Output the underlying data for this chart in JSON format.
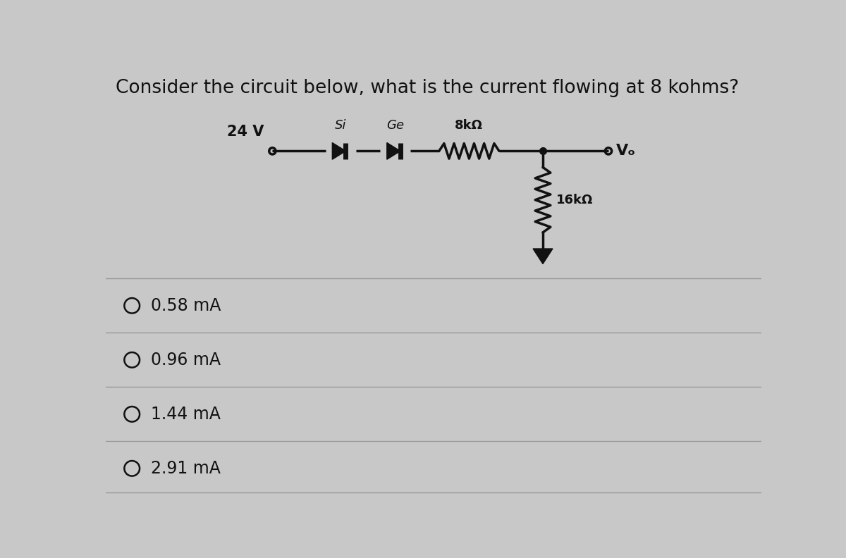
{
  "title": "Consider the circuit below, what is the current flowing at 8 kohms?",
  "title_fontsize": 19,
  "background_color": "#c8c8c8",
  "circuit": {
    "voltage_label": "24 V",
    "diode1_label": "Si",
    "diode2_label": "Ge",
    "resistor1_label": "8kΩ",
    "resistor2_label": "16kΩ",
    "vo_label": "Vₒ"
  },
  "options": [
    "0.58 mA",
    "0.96 mA",
    "1.44 mA",
    "2.91 mA"
  ],
  "line_color": "#111111",
  "divider_color": "#999999",
  "text_color": "#111111",
  "option_fontsize": 17,
  "circuit_fontsize": 15,
  "label_fontsize": 13
}
